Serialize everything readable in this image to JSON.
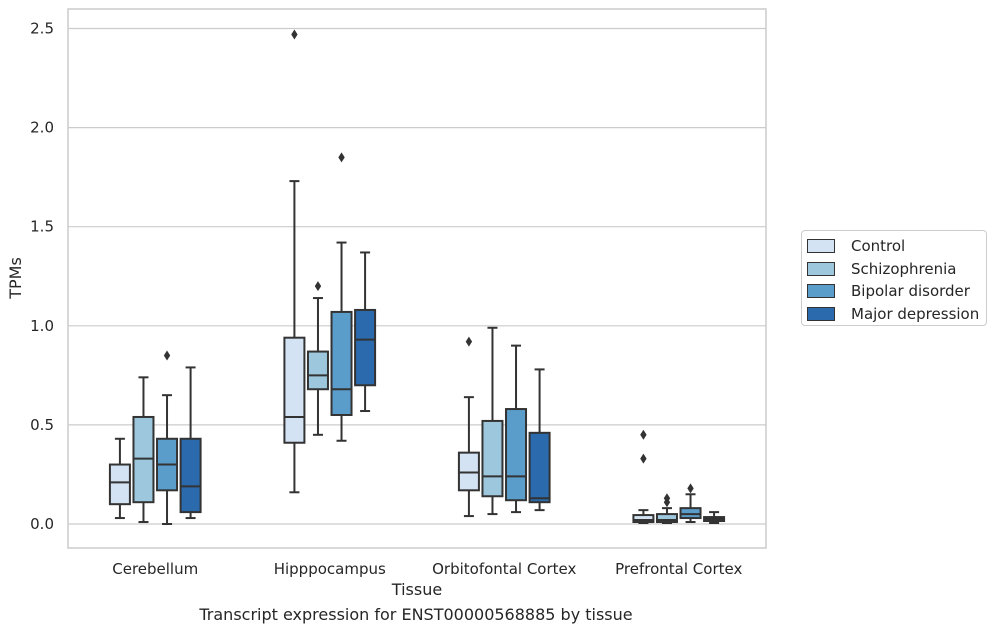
{
  "chart_data": {
    "type": "boxplot",
    "title": "",
    "caption": "Transcript expression for ENST00000568885 by tissue",
    "xlabel": "Tissue",
    "ylabel": "TPMs",
    "ylim": [
      -0.12,
      2.6
    ],
    "yticks": [
      "0.0",
      "0.5",
      "1.0",
      "1.5",
      "2.0",
      "2.5"
    ],
    "grid": "horizontal",
    "legend_placement": "right, outside",
    "categories": [
      "Cerebellum",
      "Hipppocampus",
      "Orbitofontal Cortex",
      "Prefrontal Cortex"
    ],
    "series": [
      {
        "name": "Control",
        "color": "#d4e3f3",
        "boxes": [
          {
            "whislo": 0.03,
            "q1": 0.1,
            "med": 0.21,
            "q3": 0.3,
            "whishi": 0.43,
            "fliers": []
          },
          {
            "whislo": 0.16,
            "q1": 0.41,
            "med": 0.54,
            "q3": 0.94,
            "whishi": 1.73,
            "fliers": [
              2.47
            ]
          },
          {
            "whislo": 0.04,
            "q1": 0.17,
            "med": 0.26,
            "q3": 0.36,
            "whishi": 0.64,
            "fliers": [
              0.92
            ]
          },
          {
            "whislo": 0.005,
            "q1": 0.01,
            "med": 0.02,
            "q3": 0.045,
            "whishi": 0.07,
            "fliers": [
              0.33,
              0.45
            ]
          }
        ]
      },
      {
        "name": "Schizophrenia",
        "color": "#9dc7dd",
        "boxes": [
          {
            "whislo": 0.01,
            "q1": 0.11,
            "med": 0.33,
            "q3": 0.54,
            "whishi": 0.74,
            "fliers": []
          },
          {
            "whislo": 0.45,
            "q1": 0.68,
            "med": 0.75,
            "q3": 0.87,
            "whishi": 1.14,
            "fliers": [
              1.2
            ]
          },
          {
            "whislo": 0.05,
            "q1": 0.14,
            "med": 0.24,
            "q3": 0.52,
            "whishi": 0.99,
            "fliers": []
          },
          {
            "whislo": 0.005,
            "q1": 0.01,
            "med": 0.02,
            "q3": 0.05,
            "whishi": 0.08,
            "fliers": [
              0.11,
              0.13
            ]
          }
        ]
      },
      {
        "name": "Bipolar disorder",
        "color": "#5b9dca",
        "boxes": [
          {
            "whislo": 0.0,
            "q1": 0.17,
            "med": 0.3,
            "q3": 0.43,
            "whishi": 0.65,
            "fliers": [
              0.85
            ]
          },
          {
            "whislo": 0.42,
            "q1": 0.55,
            "med": 0.68,
            "q3": 1.07,
            "whishi": 1.42,
            "fliers": [
              1.85
            ]
          },
          {
            "whislo": 0.06,
            "q1": 0.12,
            "med": 0.24,
            "q3": 0.58,
            "whishi": 0.9,
            "fliers": []
          },
          {
            "whislo": 0.01,
            "q1": 0.03,
            "med": 0.05,
            "q3": 0.08,
            "whishi": 0.15,
            "fliers": [
              0.18
            ]
          }
        ]
      },
      {
        "name": "Major depression",
        "color": "#2a6aad",
        "boxes": [
          {
            "whislo": 0.03,
            "q1": 0.06,
            "med": 0.19,
            "q3": 0.43,
            "whishi": 0.79,
            "fliers": []
          },
          {
            "whislo": 0.57,
            "q1": 0.7,
            "med": 0.93,
            "q3": 1.08,
            "whishi": 1.37,
            "fliers": []
          },
          {
            "whislo": 0.07,
            "q1": 0.11,
            "med": 0.13,
            "q3": 0.46,
            "whishi": 0.78,
            "fliers": []
          },
          {
            "whislo": 0.005,
            "q1": 0.015,
            "med": 0.025,
            "q3": 0.035,
            "whishi": 0.06,
            "fliers": []
          }
        ]
      }
    ]
  }
}
